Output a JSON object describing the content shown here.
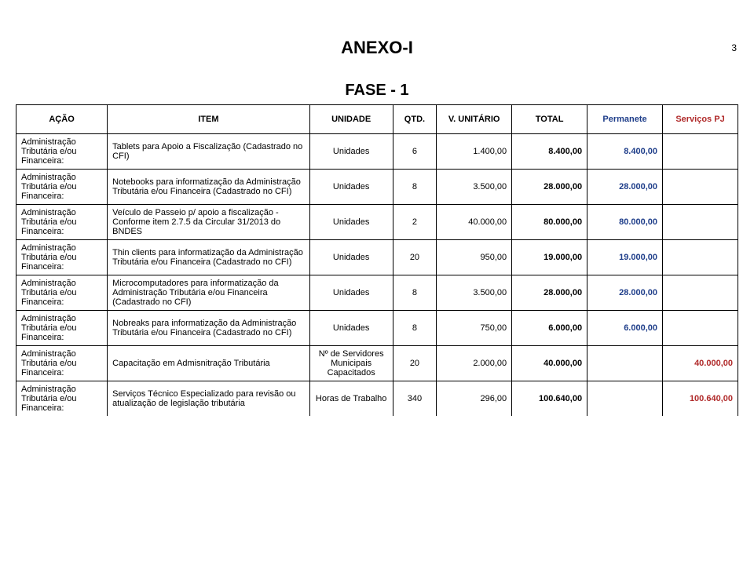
{
  "page_number": "3",
  "heading": "ANEXO-I",
  "subheading": "FASE - 1",
  "header": {
    "acao": "AÇÃO",
    "item": "ITEM",
    "unidade": "UNIDADE",
    "qtd": "QTD.",
    "unitario": "V. UNITÁRIO",
    "total": "TOTAL",
    "permanente": "Permanete",
    "servicos": "Serviços PJ",
    "permanente_color": "#1f3e8a",
    "servicos_color": "#b02a2a"
  },
  "acao_label": "Administração Tributária e/ou Financeira:",
  "rows": [
    {
      "item": "Tablets  para Apoio a Fiscalização (Cadastrado no CFI)",
      "unidade": "Unidades",
      "qtd": "6",
      "unit": "1.400,00",
      "total": "8.400,00",
      "perm": "8.400,00",
      "serv": ""
    },
    {
      "item": "Notebooks para informatização da Administração Tributária e/ou Financeira (Cadastrado no CFI)",
      "unidade": "Unidades",
      "qtd": "8",
      "unit": "3.500,00",
      "total": "28.000,00",
      "perm": "28.000,00",
      "serv": ""
    },
    {
      "item": "Veículo de Passeio p/ apoio a fiscalização - Conforme item 2.7.5 da Circular 31/2013 do BNDES",
      "unidade": "Unidades",
      "qtd": "2",
      "unit": "40.000,00",
      "total": "80.000,00",
      "perm": "80.000,00",
      "serv": ""
    },
    {
      "item": "Thin clients para informatização da Administração Tributária e/ou Financeira (Cadastrado no CFI)",
      "unidade": "Unidades",
      "qtd": "20",
      "unit": "950,00",
      "total": "19.000,00",
      "perm": "19.000,00",
      "serv": ""
    },
    {
      "item": "Microcomputadores para informatização da Administração Tributária e/ou Financeira  (Cadastrado no CFI)",
      "unidade": "Unidades",
      "qtd": "8",
      "unit": "3.500,00",
      "total": "28.000,00",
      "perm": "28.000,00",
      "serv": ""
    },
    {
      "item": "Nobreaks para informatização da Administração Tributária e/ou Financeira (Cadastrado no CFI)",
      "unidade": "Unidades",
      "qtd": "8",
      "unit": "750,00",
      "total": "6.000,00",
      "perm": "6.000,00",
      "serv": ""
    },
    {
      "item": "Capacitação em Admisnitração Tributária",
      "unidade": "Nº de Servidores Municipais Capacitados",
      "qtd": "20",
      "unit": "2.000,00",
      "total": "40.000,00",
      "perm": "",
      "serv": "40.000,00"
    },
    {
      "item": "Serviços Técnico Especializado para revisão ou atualização de legislação tributária",
      "unidade": "Horas de Trabalho",
      "qtd": "340",
      "unit": "296,00",
      "total": "100.640,00",
      "perm": "",
      "serv": "100.640,00"
    }
  ],
  "colors": {
    "permanente_text": "#1f3e8a",
    "servicos_text": "#b02a2a"
  }
}
